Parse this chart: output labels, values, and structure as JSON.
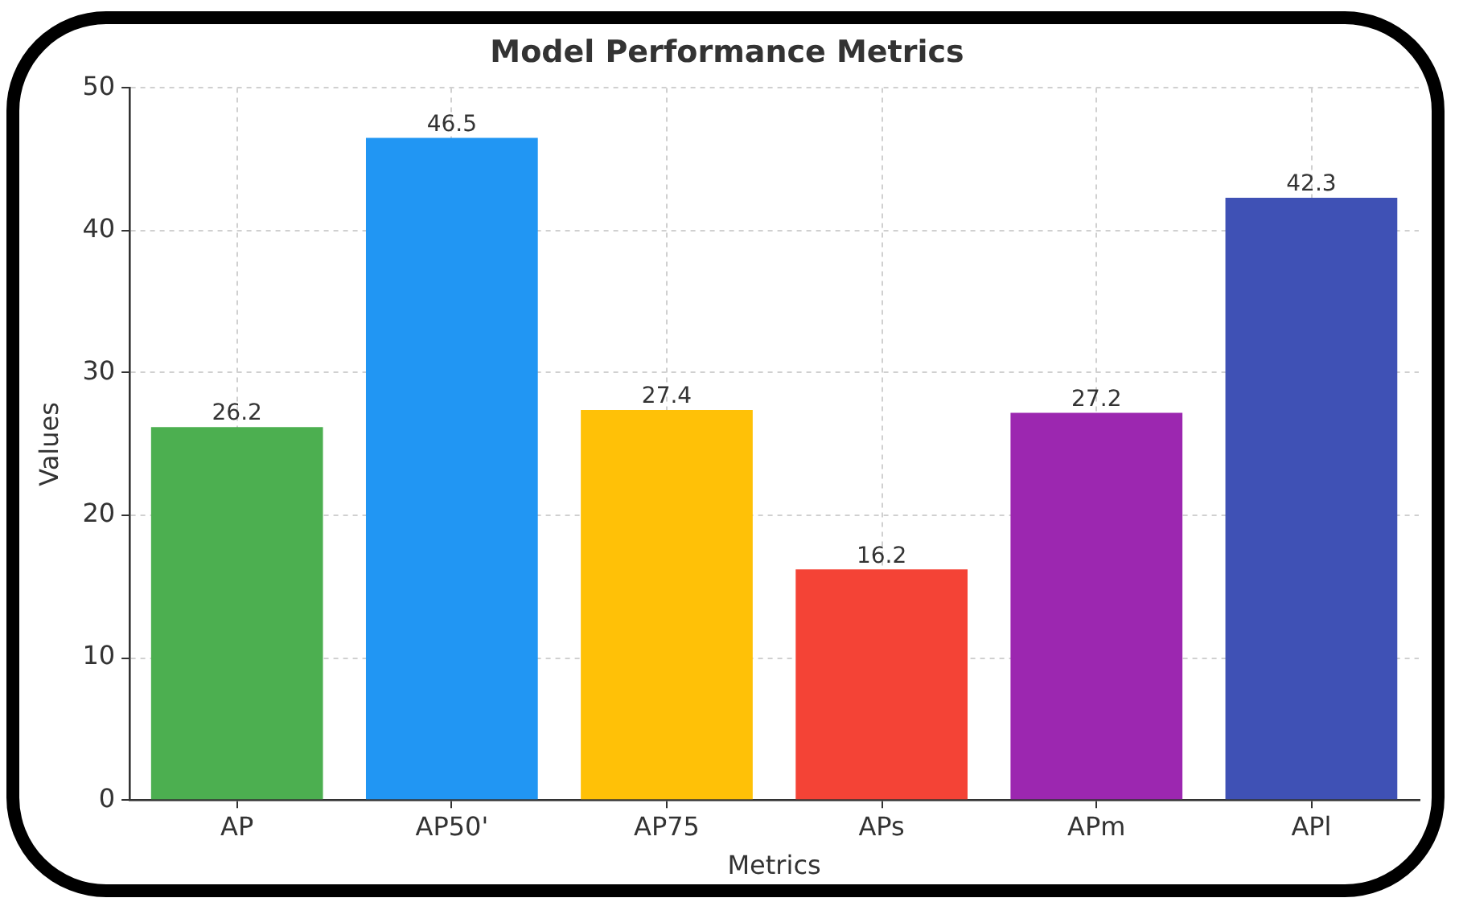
{
  "chart_data": {
    "type": "bar",
    "title": "Model Performance Metrics",
    "xlabel": "Metrics",
    "ylabel": "Values",
    "categories": [
      "AP",
      "AP50'",
      "AP75",
      "APs",
      "APm",
      "APl"
    ],
    "values": [
      26.2,
      46.5,
      27.4,
      16.2,
      27.2,
      42.3
    ],
    "colors": [
      "#4caf50",
      "#2196f3",
      "#ffc107",
      "#f44336",
      "#9c27b0",
      "#3f51b5"
    ],
    "ylim": [
      0,
      50
    ],
    "yticks": [
      0,
      10,
      20,
      30,
      40,
      50
    ],
    "grid": true,
    "data_labels": true
  }
}
